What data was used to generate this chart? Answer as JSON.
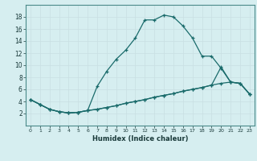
{
  "xlabel": "Humidex (Indice chaleur)",
  "background_color": "#d6eef0",
  "grid_color": "#c8dfe2",
  "line_color": "#1a6b6b",
  "xlim": [
    -0.5,
    23.5
  ],
  "ylim": [
    0,
    20
  ],
  "xticks": [
    0,
    1,
    2,
    3,
    4,
    5,
    6,
    7,
    8,
    9,
    10,
    11,
    12,
    13,
    14,
    15,
    16,
    17,
    18,
    19,
    20,
    21,
    22,
    23
  ],
  "yticks": [
    2,
    4,
    6,
    8,
    10,
    12,
    14,
    16,
    18
  ],
  "line1_x": [
    0,
    1,
    2,
    3,
    4,
    5,
    6,
    7,
    8,
    9,
    10,
    11,
    12,
    13,
    14,
    15,
    16,
    17,
    18,
    19,
    20,
    21,
    22,
    23
  ],
  "line1_y": [
    4.3,
    3.5,
    2.7,
    2.3,
    2.1,
    2.2,
    2.5,
    6.5,
    9.0,
    11.0,
    12.5,
    14.5,
    17.5,
    17.5,
    18.3,
    18.0,
    16.5,
    14.5,
    11.5,
    11.5,
    9.5,
    7.2,
    7.0,
    5.2
  ],
  "line2_x": [
    0,
    1,
    2,
    3,
    4,
    5,
    6,
    7,
    8,
    9,
    10,
    11,
    12,
    13,
    14,
    15,
    16,
    17,
    18,
    19,
    20,
    21,
    22,
    23
  ],
  "line2_y": [
    4.3,
    3.5,
    2.7,
    2.3,
    2.1,
    2.2,
    2.5,
    2.7,
    3.0,
    3.3,
    3.7,
    4.0,
    4.3,
    4.7,
    5.0,
    5.3,
    5.7,
    6.0,
    6.3,
    6.7,
    7.0,
    7.2,
    7.0,
    5.2
  ],
  "line3_x": [
    0,
    1,
    2,
    3,
    4,
    5,
    6,
    7,
    8,
    9,
    10,
    11,
    12,
    13,
    14,
    15,
    16,
    17,
    18,
    19,
    20,
    21,
    22,
    23
  ],
  "line3_y": [
    4.3,
    3.5,
    2.7,
    2.3,
    2.1,
    2.2,
    2.5,
    2.7,
    3.0,
    3.3,
    3.7,
    4.0,
    4.3,
    4.7,
    5.0,
    5.3,
    5.7,
    6.0,
    6.3,
    6.7,
    9.7,
    7.2,
    7.0,
    5.2
  ]
}
